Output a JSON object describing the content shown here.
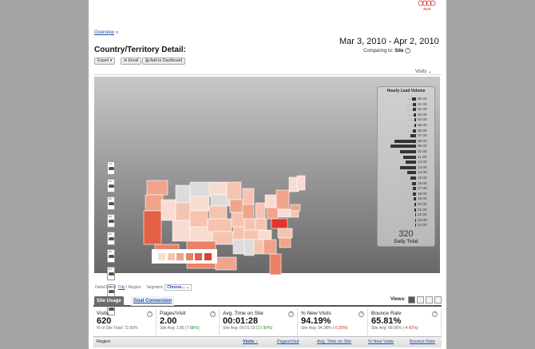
{
  "brand": {
    "logo_text": "Audi"
  },
  "breadcrumb": {
    "link": "Overview",
    "separator": "»"
  },
  "page_title": "Country/Territory Detail:",
  "date_range": "Mar 3, 2010 - Apr 2, 2010",
  "comparing": {
    "label": "Comparing to:",
    "value": "Site"
  },
  "toolbar": {
    "export": "Export ▾",
    "email": "Email",
    "add_dashboard": "Add to Dashboard"
  },
  "metric_select": "Visits",
  "map": {
    "colors": {
      "scale": [
        "#f9dcd1",
        "#f5c4b0",
        "#f0a48b",
        "#ea8268",
        "#e26046",
        "#d94030"
      ],
      "no_data": "#dcdcdc",
      "highlight": "#e0352b"
    },
    "thumbnails": [
      "A4",
      "A3",
      "A5",
      "Q5",
      "A6",
      "A8",
      "Q7",
      "S5",
      "A3"
    ]
  },
  "hourly_panel": {
    "title": "Hourly Lead Volume",
    "hours": [
      "00 00",
      "01 00",
      "02 00",
      "03 00",
      "04 00",
      "05 00",
      "06 00",
      "07 00",
      "08 00",
      "09 00",
      "10 00",
      "11 00",
      "12 00",
      "13 00",
      "14 00",
      "15 00",
      "16 00",
      "17 00",
      "18 00",
      "19 00",
      "20 00",
      "21 00",
      "22 00",
      "23 00",
      "24 00"
    ],
    "volume_fraction": [
      0.15,
      0.12,
      0.1,
      0.08,
      0.06,
      0.05,
      0.1,
      0.2,
      0.75,
      0.9,
      0.55,
      0.45,
      0.35,
      0.55,
      0.3,
      0.2,
      0.15,
      0.12,
      0.1,
      0.08,
      0.06,
      0.05,
      0.04,
      0.03,
      0.02
    ],
    "total": "320",
    "total_label": "Daily Total"
  },
  "detail_bar": {
    "level_label": "Detail Level:",
    "city": "City",
    "sep": "|",
    "region": "Region",
    "segment_label": "Segment:",
    "segment_value": "Choose..."
  },
  "tabs": [
    "Site Usage",
    "Goal Conversion"
  ],
  "views_label": "Views:",
  "metrics": [
    {
      "label": "Visits",
      "value": "620",
      "sub_prefix": "% of Site Total:",
      "sub_value": "72.60%",
      "change": ""
    },
    {
      "label": "Pages/Visit",
      "value": "2.00",
      "sub_prefix": "Site Avg:",
      "sub_value": "1.85",
      "change": "(7.88%)"
    },
    {
      "label": "Avg. Time on Site",
      "value": "00:01:28",
      "sub_prefix": "Site Avg:",
      "sub_value": "00:01:15",
      "change": "(17.90%)"
    },
    {
      "label": "% New Visits",
      "value": "94.19%",
      "sub_prefix": "Site Avg:",
      "sub_value": "94.38%",
      "change": "(-0.20%)"
    },
    {
      "label": "Bounce Rate",
      "value": "65.81%",
      "sub_prefix": "Site Avg:",
      "sub_value": "68.85%",
      "change": "(-4.42%)"
    }
  ],
  "table_headers": [
    "Region",
    "Visits ↓",
    "Pages/Visit",
    "Avg. Time on Site",
    "% New Visits",
    "Bounce Rate"
  ]
}
